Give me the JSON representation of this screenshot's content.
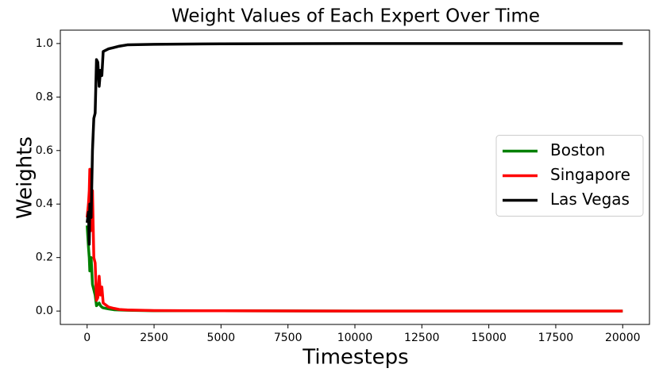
{
  "chart_data": {
    "type": "line",
    "title": "Weight Values of Each Expert Over Time",
    "x_label": "Timesteps",
    "y_label": "Weights",
    "x": [
      0,
      50,
      80,
      100,
      130,
      150,
      200,
      250,
      300,
      350,
      400,
      450,
      500,
      550,
      600,
      800,
      1000,
      1200,
      1500,
      2500,
      5000,
      10000,
      20000
    ],
    "series": [
      {
        "name": "Boston",
        "color": "#008000",
        "values": [
          0.32,
          0.24,
          0.2,
          0.15,
          0.18,
          0.2,
          0.1,
          0.08,
          0.06,
          0.02,
          0.025,
          0.03,
          0.02,
          0.015,
          0.012,
          0.008,
          0.005,
          0.004,
          0.003,
          0.001,
          0.001,
          0,
          0
        ]
      },
      {
        "name": "Singapore",
        "color": "#ff0000",
        "values": [
          0.35,
          0.4,
          0.45,
          0.53,
          0.3,
          0.35,
          0.45,
          0.2,
          0.18,
          0.04,
          0.05,
          0.13,
          0.06,
          0.09,
          0.03,
          0.015,
          0.01,
          0.006,
          0.004,
          0.002,
          0.001,
          0,
          0
        ]
      },
      {
        "name": "Las Vegas",
        "color": "#000000",
        "values": [
          0.33,
          0.37,
          0.25,
          0.4,
          0.38,
          0.35,
          0.6,
          0.72,
          0.74,
          0.94,
          0.93,
          0.84,
          0.9,
          0.88,
          0.97,
          0.98,
          0.985,
          0.99,
          0.995,
          0.997,
          0.999,
          1.0,
          1.0
        ]
      }
    ],
    "xlim": [
      -1000,
      21000
    ],
    "xticks": [
      0,
      2500,
      5000,
      7500,
      10000,
      12500,
      15000,
      17500,
      20000
    ],
    "ylim": [
      -0.05,
      1.05
    ],
    "yticks": [
      {
        "value": 0,
        "label": "0.0"
      },
      {
        "value": 0.2,
        "label": "0.2"
      },
      {
        "value": 0.4,
        "label": "0.4"
      },
      {
        "value": 0.6,
        "label": "0.6"
      },
      {
        "value": 0.8,
        "label": "0.8"
      },
      {
        "value": 1,
        "label": "1.0"
      }
    ],
    "grid": false,
    "legend": "right"
  }
}
